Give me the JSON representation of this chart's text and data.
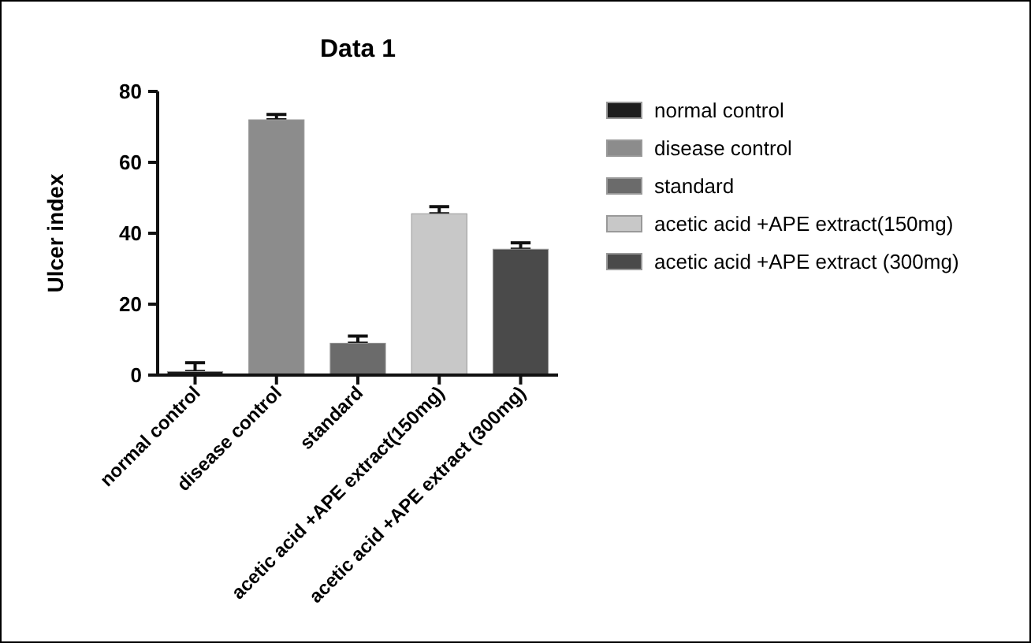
{
  "chart_data": {
    "type": "bar",
    "title": "Data 1",
    "ylabel": "Ulcer index",
    "categories": [
      "normal control",
      "disease control",
      "standard",
      "acetic acid +APE extract(150mg)",
      "acetic acid +APE extract (300mg)"
    ],
    "series": [
      {
        "name": "normal control",
        "color": "#1e1e1e",
        "values": [
          1,
          null,
          null,
          null,
          null
        ],
        "errors": [
          [
            1,
            3.5
          ],
          null,
          null,
          null,
          null
        ]
      },
      {
        "name": "disease control",
        "color": "#8c8c8c",
        "values": [
          null,
          72,
          null,
          null,
          null
        ],
        "errors": [
          null,
          [
            72,
            73.5
          ],
          null,
          null,
          null
        ]
      },
      {
        "name": "standard",
        "color": "#6b6b6b",
        "values": [
          null,
          null,
          9,
          null,
          null
        ],
        "errors": [
          null,
          null,
          [
            9,
            11
          ],
          null,
          null
        ]
      },
      {
        "name": "acetic acid +APE extract(150mg)",
        "color": "#c8c8c8",
        "values": [
          null,
          null,
          null,
          45.5,
          null
        ],
        "errors": [
          null,
          null,
          null,
          [
            45.5,
            47.5
          ],
          null
        ]
      },
      {
        "name": "acetic acid +APE extract (300mg)",
        "color": "#4a4a4a",
        "values": [
          null,
          null,
          null,
          null,
          35.5
        ],
        "errors": [
          null,
          null,
          null,
          null,
          [
            35.5,
            37.3
          ]
        ]
      }
    ],
    "ylim": [
      0,
      80
    ],
    "yticks": [
      0,
      20,
      40,
      60,
      80
    ],
    "grid": false,
    "legend": "right"
  }
}
